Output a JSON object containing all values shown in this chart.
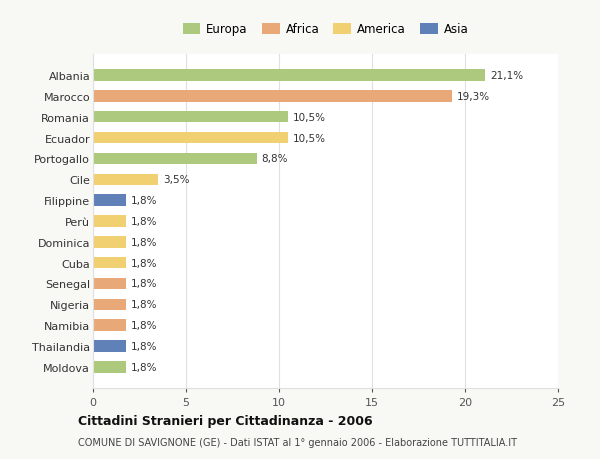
{
  "categories": [
    "Albania",
    "Marocco",
    "Romania",
    "Ecuador",
    "Portogallo",
    "Cile",
    "Filippine",
    "Perù",
    "Dominica",
    "Cuba",
    "Senegal",
    "Nigeria",
    "Namibia",
    "Thailandia",
    "Moldova"
  ],
  "values": [
    21.1,
    19.3,
    10.5,
    10.5,
    8.8,
    3.5,
    1.8,
    1.8,
    1.8,
    1.8,
    1.8,
    1.8,
    1.8,
    1.8,
    1.8
  ],
  "labels": [
    "21,1%",
    "19,3%",
    "10,5%",
    "10,5%",
    "8,8%",
    "3,5%",
    "1,8%",
    "1,8%",
    "1,8%",
    "1,8%",
    "1,8%",
    "1,8%",
    "1,8%",
    "1,8%",
    "1,8%"
  ],
  "colors": [
    "#adc97e",
    "#e8a878",
    "#adc97e",
    "#f0d070",
    "#adc97e",
    "#f0d070",
    "#6080b8",
    "#f0d070",
    "#f0d070",
    "#f0d070",
    "#e8a878",
    "#e8a878",
    "#e8a878",
    "#6080b8",
    "#adc97e"
  ],
  "legend_labels": [
    "Europa",
    "Africa",
    "America",
    "Asia"
  ],
  "legend_colors": [
    "#adc97e",
    "#e8a878",
    "#f0d070",
    "#6080b8"
  ],
  "title": "Cittadini Stranieri per Cittadinanza - 2006",
  "subtitle": "COMUNE DI SAVIGNONE (GE) - Dati ISTAT al 1° gennaio 2006 - Elaborazione TUTTITALIA.IT",
  "xlim": [
    0,
    25
  ],
  "xticks": [
    0,
    5,
    10,
    15,
    20,
    25
  ],
  "background_color": "#f8f8f5",
  "plot_bg_color": "#ffffff",
  "grid_color": "#e0e0e0"
}
